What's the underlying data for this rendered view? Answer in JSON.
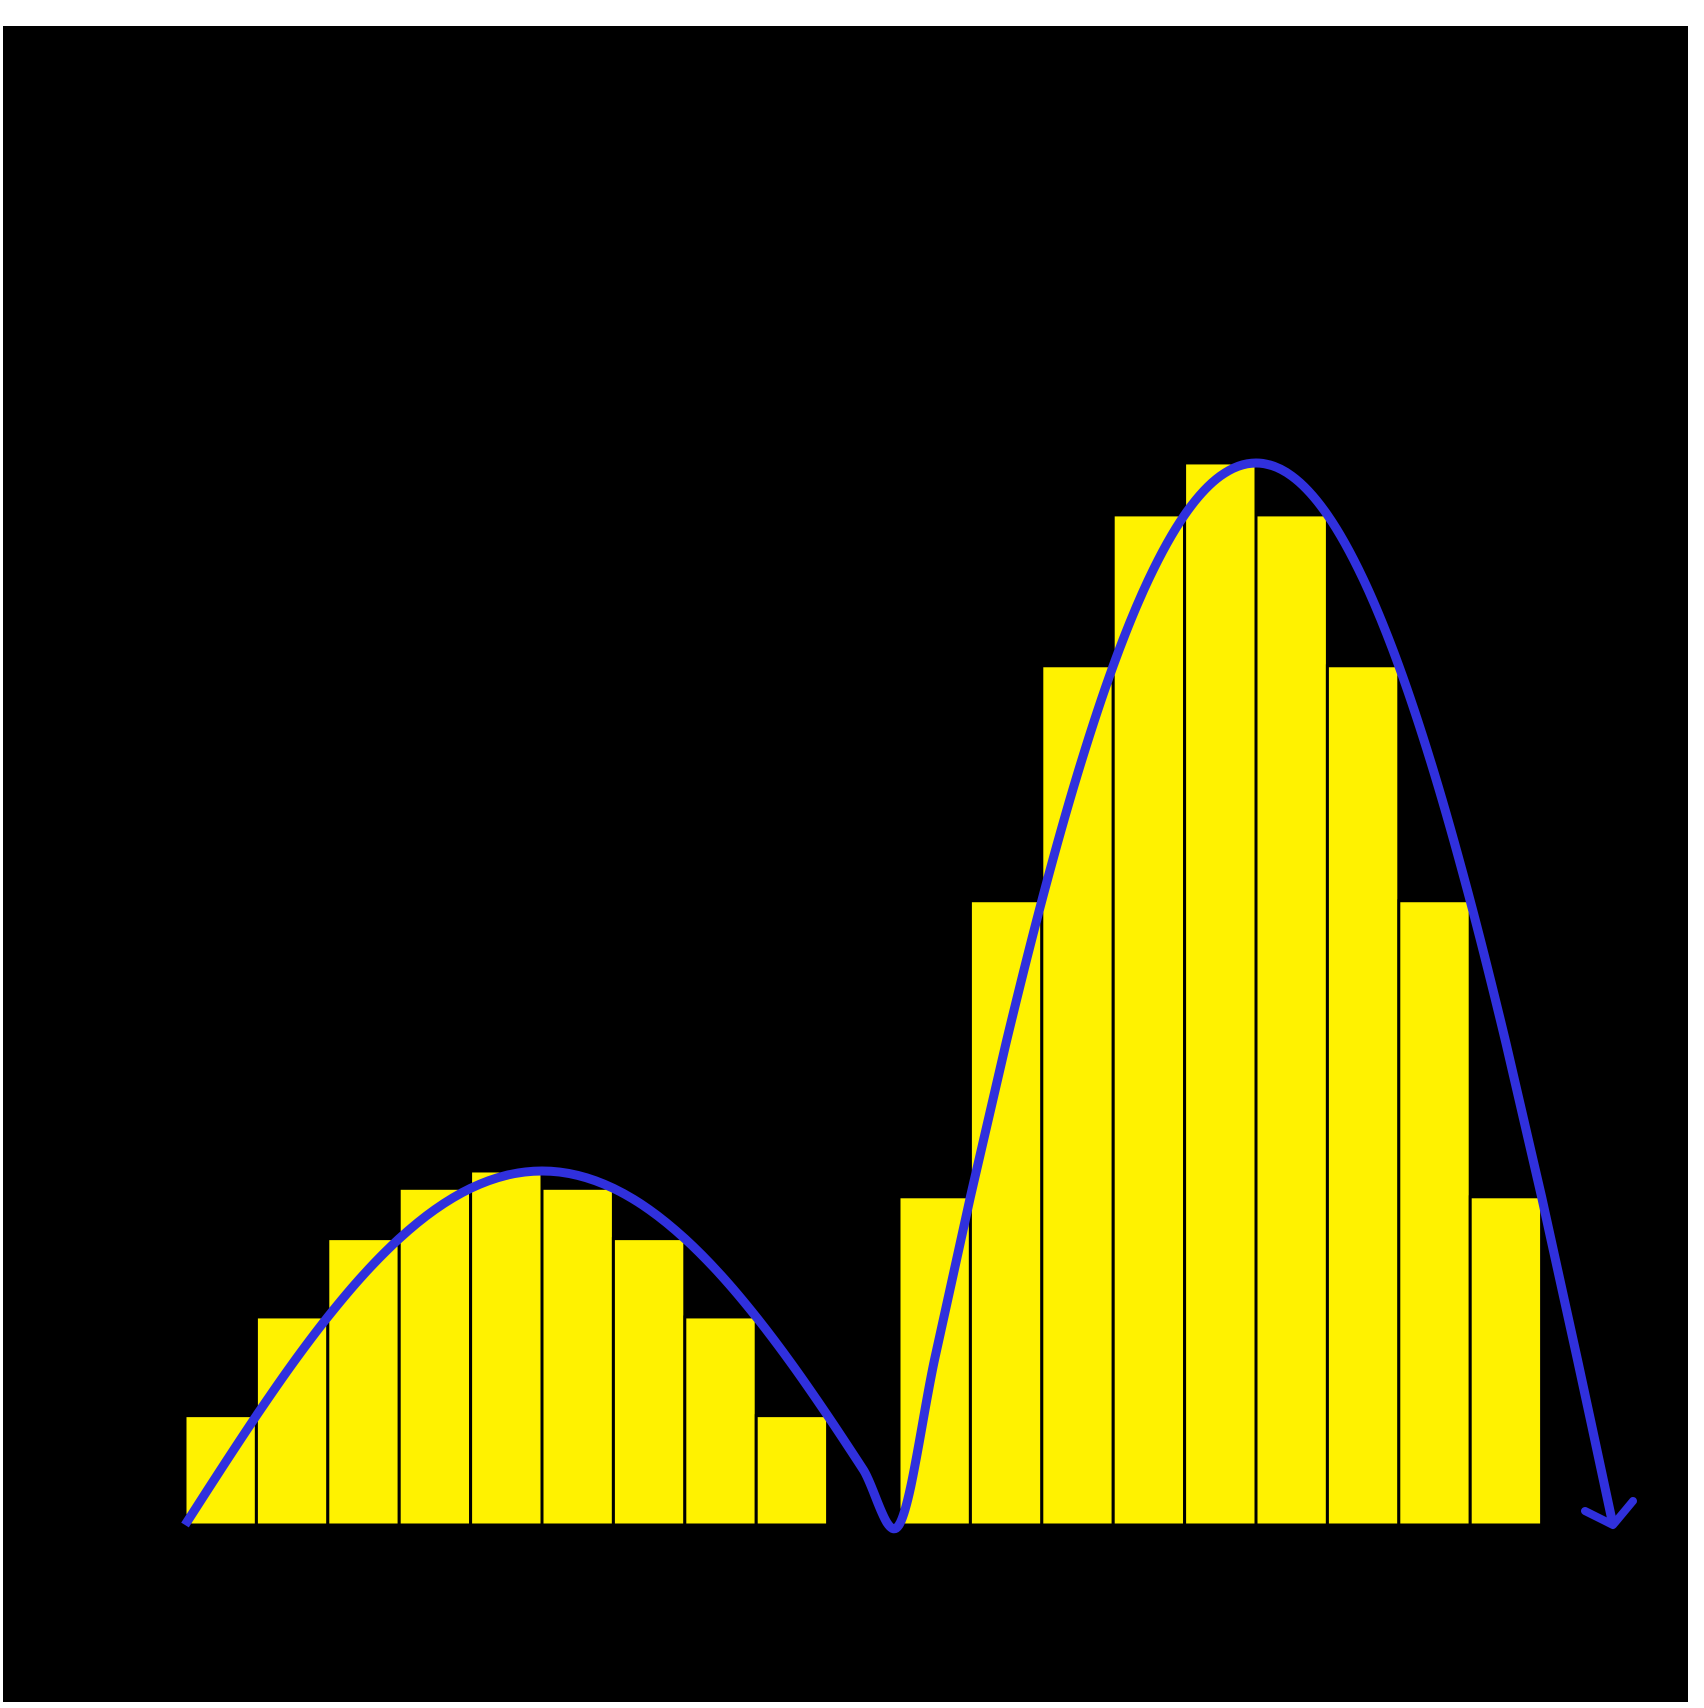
{
  "chart_data": {
    "type": "bar",
    "categories": [
      null,
      null,
      null,
      null,
      null,
      null,
      null,
      null,
      null,
      null,
      null,
      null,
      null,
      null,
      null,
      null,
      null,
      null,
      null,
      null
    ],
    "values": [
      10.04,
      19.1,
      26.29,
      30.91,
      32.5,
      30.91,
      26.29,
      19.1,
      10.04,
      0,
      30.13,
      57.31,
      78.88,
      92.73,
      97.5,
      92.73,
      78.88,
      57.31,
      30.13,
      0
    ],
    "color": "#fff200",
    "ylim": [
      0,
      140
    ],
    "xlim": [
      0,
      20
    ],
    "curve": {
      "color": "#3030dd",
      "x": [
        0,
        0.5,
        1,
        1.5,
        2,
        2.5,
        3,
        3.5,
        4,
        4.5,
        5,
        5.5,
        6,
        6.5,
        7,
        7.5,
        8,
        8.5,
        9,
        9.5,
        10,
        10.5,
        11,
        11.5,
        12,
        12.5,
        13,
        13.5,
        14,
        14.5,
        15,
        15.5,
        16,
        16.5,
        17,
        17.5,
        18,
        18.5,
        19,
        19.5,
        20
      ],
      "values": [
        0,
        5.08,
        10.04,
        14.76,
        19.1,
        22.98,
        26.29,
        28.96,
        30.91,
        32.1,
        32.5,
        32.1,
        30.91,
        28.96,
        26.29,
        22.98,
        19.1,
        14.76,
        10.04,
        5.08,
        0,
        15.25,
        30.13,
        44.27,
        57.31,
        68.94,
        78.88,
        86.87,
        92.73,
        96.3,
        97.5,
        96.3,
        92.73,
        86.87,
        78.88,
        68.94,
        57.31,
        44.27,
        30.13,
        15.25,
        0
      ]
    }
  }
}
